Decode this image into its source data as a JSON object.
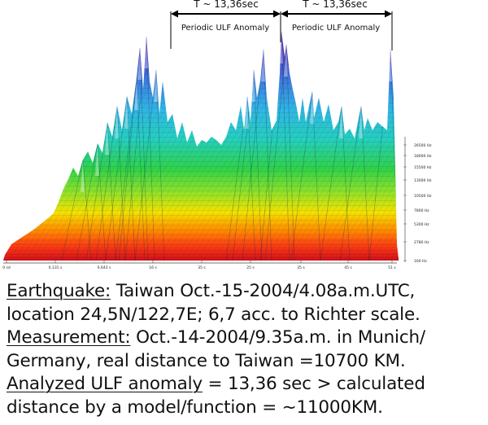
{
  "annotations": {
    "period_left": "T ~ 13,36sec",
    "period_right": "T ~ 13,36sec",
    "label_left": "Periodic ULF Anomaly",
    "label_right": "Periodic ULF Anomaly"
  },
  "axes": {
    "x_ticks": [
      "0 sd",
      "0,131 s",
      "0,643 s",
      "16 s",
      "35 s",
      "25 s",
      "35 s",
      "45 s",
      "51 s"
    ],
    "y_ticks": [
      "26500 Hz",
      "18000 Hz",
      "15500 Hz",
      "13000 Hz",
      "10500 Hz",
      "7800 Hz",
      "5300 Hz",
      "2780 Hz",
      "160 Hz"
    ]
  },
  "caption": {
    "line1_label": "Earthquake:",
    "line1_text": " Taiwan Oct.-15-2004/4.08a.m.UTC,",
    "line2_text": "location 24,5N/122,7E; 6,7 acc. to Richter scale.",
    "line3_label": "Measurement:",
    "line3_text": " Oct.-14-2004/9.35a.m. in Munich/",
    "line4_text": "Germany, real distance to Taiwan =10700 KM.",
    "line5_label": "Analyzed ULF anomaly",
    "line5_text": " = 13,36 sec > calculated",
    "line6_text": "distance by a model/function = ~11000KM."
  },
  "colors": {
    "band_bottom": "#e0141a",
    "band_orange": "#ff8a00",
    "band_yellow": "#f2e600",
    "band_green": "#38d23a",
    "band_cyan": "#22c8c8",
    "band_blue": "#2a6bd8",
    "band_violet": "#5a1fa8"
  }
}
